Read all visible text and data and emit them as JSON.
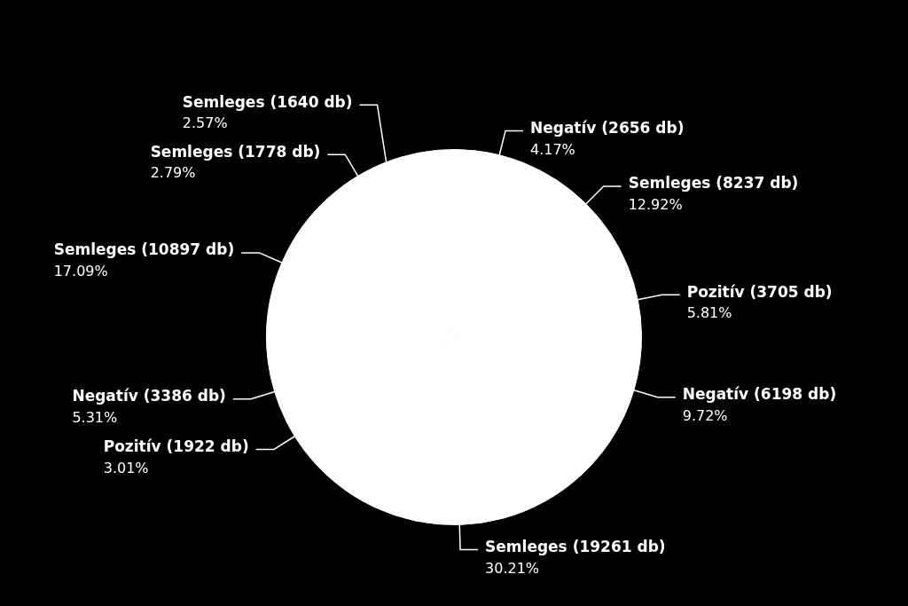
{
  "chart_data": {
    "type": "pie",
    "categories": [
      "Negatív (2656 db)",
      "Semleges (8237 db)",
      "Pozitív (3705 db)",
      "Negatív (6198 db)",
      "Semleges (19261 db)",
      "Pozitív (1922 db)",
      "Negatív (3386 db)",
      "Semleges (10897 db)",
      "Semleges (1778 db)",
      "Semleges (1640 db)",
      null
    ],
    "values": [
      4.17,
      12.92,
      5.81,
      9.72,
      30.21,
      3.01,
      5.31,
      17.09,
      2.79,
      2.57,
      6.4
    ],
    "value_labels": [
      "4.17%",
      "12.92%",
      "5.81%",
      "9.72%",
      "30.21%",
      "3.01%",
      "5.31%",
      "17.09%",
      "2.79%",
      "2.57%",
      null
    ],
    "colors": [
      "#ffffff",
      "#ffffff",
      "#ffffff",
      "#ffffff",
      "#ffffff",
      "#ffffff",
      "#ffffff",
      "#ffffff",
      "#ffffff",
      "#ffffff",
      "#ffffff"
    ],
    "legend": false
  }
}
